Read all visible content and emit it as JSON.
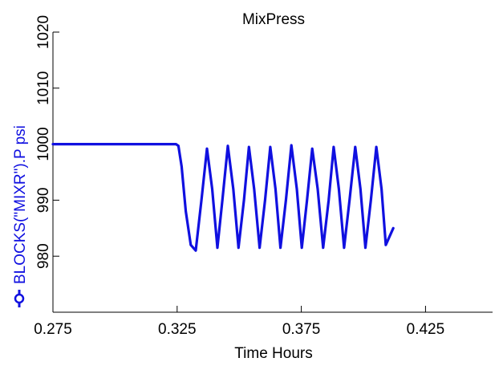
{
  "chart_data": {
    "type": "line",
    "title": "MixPress",
    "xlabel": "Time Hours",
    "ylabel": "BLOCKS(\"MIXR\").P psi",
    "xlim": [
      0.275,
      0.452
    ],
    "ylim": [
      970,
      1020
    ],
    "xticks": [
      0.275,
      0.325,
      0.375,
      0.425
    ],
    "xtick_labels": [
      "0.275",
      "0.325",
      "0.375",
      "0.425"
    ],
    "yticks": [
      980,
      990,
      1000,
      1010,
      1020
    ],
    "ytick_labels": [
      "980",
      "990",
      "1000",
      "1010",
      "1020"
    ],
    "grid": false,
    "series": [
      {
        "name": "BLOCKS(\"MIXR\").P psi",
        "color": "#1010e0",
        "marker": "circle",
        "x": [
          0.275,
          0.3245,
          0.3255,
          0.3268,
          0.3285,
          0.3305,
          0.3325,
          0.3348,
          0.337,
          0.3391,
          0.3412,
          0.3432,
          0.3454,
          0.3476,
          0.3497,
          0.3519,
          0.3539,
          0.356,
          0.3582,
          0.3604,
          0.3625,
          0.3646,
          0.3666,
          0.3688,
          0.371,
          0.3732,
          0.3752,
          0.3773,
          0.3794,
          0.3816,
          0.3838,
          0.386,
          0.388,
          0.3901,
          0.3922,
          0.3944,
          0.3967,
          0.3988,
          0.4008,
          0.403,
          0.4052,
          0.4073,
          0.409,
          0.412
        ],
        "y": [
          1000.0,
          1000.0,
          999.7,
          996.0,
          988.0,
          982.0,
          981.0,
          990.0,
          999.2,
          992.0,
          981.5,
          990.0,
          999.7,
          992.0,
          981.5,
          990.0,
          999.5,
          992.0,
          981.5,
          990.0,
          999.5,
          992.0,
          981.5,
          990.0,
          999.8,
          992.0,
          981.5,
          990.0,
          999.2,
          992.0,
          981.5,
          990.0,
          999.5,
          992.0,
          981.5,
          990.0,
          999.5,
          992.0,
          981.5,
          990.0,
          999.5,
          992.0,
          982.0,
          985.0
        ]
      }
    ]
  }
}
